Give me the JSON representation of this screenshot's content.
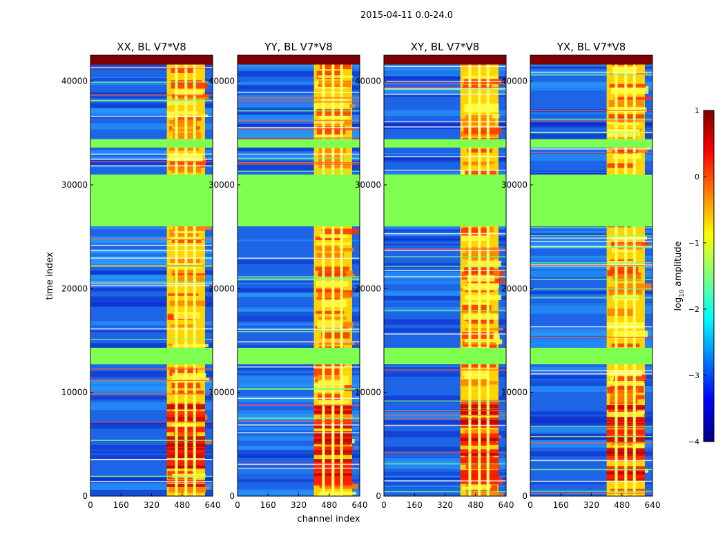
{
  "chart_data": {
    "type": "heatmap",
    "suptitle": "2015-04-11 0.0-24.0",
    "xlabel": "channel index",
    "ylabel": "time index",
    "xlim": [
      0,
      640
    ],
    "ylim": [
      0,
      42500
    ],
    "xticks": [
      0,
      160,
      320,
      480,
      640
    ],
    "yticks": [
      0,
      10000,
      20000,
      30000,
      40000
    ],
    "panels": [
      {
        "title": "XX, BL V7*V8",
        "polarization": "XX"
      },
      {
        "title": "YY, BL V7*V8",
        "polarization": "YY"
      },
      {
        "title": "XY, BL V7*V8",
        "polarization": "XY"
      },
      {
        "title": "YX, BL V7*V8",
        "polarization": "YX"
      }
    ],
    "features": {
      "signal_band_channels": [
        400,
        600
      ],
      "signal_gaps_channels": [
        450,
        500,
        545
      ],
      "flagged_time_ranges": [
        [
          12700,
          14300
        ],
        [
          26000,
          31000
        ],
        [
          33600,
          34400
        ],
        [
          41600,
          42500
        ]
      ],
      "strong_signal_time_range": [
        1000,
        9000
      ]
    },
    "colorbar": {
      "label": "log",
      "label_sub": "10",
      "label_tail": " amplitude",
      "min": -4,
      "max": 1,
      "ticks": [
        "1",
        "0",
        "−1",
        "−2",
        "−3",
        "−4"
      ],
      "colormap": "jet",
      "colors": [
        "#00007f",
        "#0000ff",
        "#007fff",
        "#00ffff",
        "#7fff7f",
        "#ffff00",
        "#ff7f00",
        "#ff0000",
        "#7f0000"
      ]
    }
  }
}
